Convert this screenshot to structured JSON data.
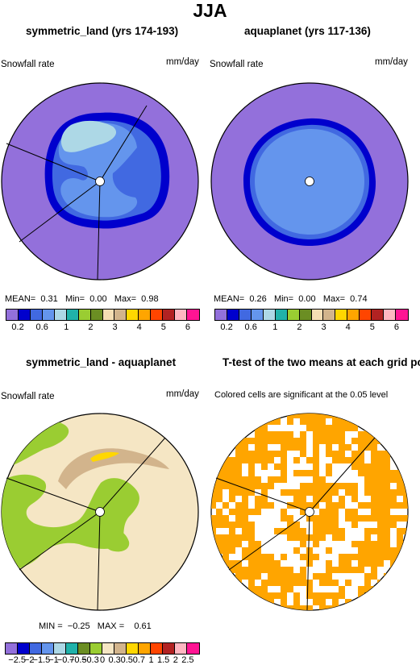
{
  "title": "JJA",
  "panels": {
    "tl": {
      "title": "symmetric_land (yrs 174-193)",
      "var_label": "Snowfall rate",
      "units": "mm/day",
      "stats": {
        "mean_label": "MEAN=",
        "mean": "0.31",
        "min_label": "Min=",
        "min": "0.00",
        "max_label": "Max=",
        "max": "0.98"
      }
    },
    "tr": {
      "title": "aquaplanet (yrs 117-136)",
      "var_label": "Snowfall rate",
      "units": "mm/day",
      "stats": {
        "mean_label": "MEAN=",
        "mean": "0.26",
        "min_label": "Min=",
        "min": "0.00",
        "max_label": "Max=",
        "max": "0.74"
      }
    },
    "bl": {
      "title": "symmetric_land - aquaplanet",
      "var_label": "Snowfall rate",
      "units": "mm/day",
      "stats": {
        "min_label": "MIN =",
        "min": "−0.25",
        "max_label": "MAX =",
        "max": "0.61"
      }
    },
    "br": {
      "title": "T-test of the two means at each grid point",
      "subtitle": "Colored cells are significant at the 0.05 level"
    }
  },
  "colorbars": {
    "abs": {
      "colors": [
        "#9370db",
        "#0000cd",
        "#4169e1",
        "#6495ed",
        "#add8e6",
        "#20b2aa",
        "#9acd32",
        "#6b8e23",
        "#f5deb3",
        "#d2b48c",
        "#ffd700",
        "#ffa500",
        "#ff4500",
        "#b22222",
        "#ffb6c1",
        "#ff1493"
      ],
      "labels": [
        "0.2",
        "0.6",
        "1",
        "2",
        "3",
        "4",
        "5",
        "6"
      ]
    },
    "diff": {
      "colors": [
        "#9370db",
        "#0000cd",
        "#4169e1",
        "#6495ed",
        "#add8e6",
        "#20b2aa",
        "#6b8e23",
        "#9acd32",
        "#f5e6c4",
        "#d2b48c",
        "#ffd700",
        "#ffa500",
        "#ff4500",
        "#b22222",
        "#ffb6c1",
        "#ff1493"
      ],
      "labels": [
        "−2.5",
        "−2",
        "−1.5",
        "−1",
        "−0.7",
        "−0.5",
        "−0.3",
        "0",
        "0.3",
        "0.5",
        "0.7",
        "1",
        "1.5",
        "2",
        "2.5"
      ]
    }
  },
  "map_colors": {
    "background": "#9370db",
    "dark_ring": "#0000cd",
    "mid_blue": "#4169e1",
    "light_blue": "#6495ed",
    "pale_blue": "#add8e6",
    "diff_bg": "#f5e6c4",
    "diff_green": "#9acd32",
    "diff_tan": "#d2b48c",
    "diff_yellow": "#ffd700",
    "ttest_orange": "#ffa500"
  }
}
